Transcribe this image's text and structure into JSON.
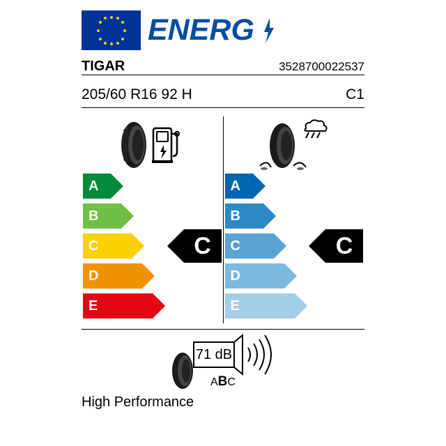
{
  "header": {
    "energy_label": "ENERG"
  },
  "product": {
    "brand": "TIGAR",
    "ean": "3528700022537",
    "size": "205/60 R16 92 H",
    "tyre_class": "C1",
    "description": "High Performance"
  },
  "fuel_efficiency": {
    "type": "rating-scale",
    "letters": [
      "A",
      "B",
      "C",
      "D",
      "E"
    ],
    "colors": [
      "#008a3a",
      "#6fbf44",
      "#fcd100",
      "#f39200",
      "#e30613"
    ],
    "widths": [
      40,
      55,
      70,
      85,
      100
    ],
    "value": "C",
    "value_index": 2
  },
  "wet_grip": {
    "type": "rating-scale",
    "letters": [
      "A",
      "B",
      "C",
      "D",
      "E"
    ],
    "colors": [
      "#0066b3",
      "#2e88c6",
      "#5aa4d4",
      "#7db9de",
      "#a3cee8"
    ],
    "widths": [
      40,
      55,
      70,
      85,
      100
    ],
    "value": "C",
    "value_index": 2
  },
  "noise": {
    "db_value": "71 dB",
    "class_letters": "ABC",
    "selected": "B"
  },
  "style": {
    "eu_flag_bg": "#003399",
    "eu_star_color": "#ffcc00",
    "energy_text_color": "#034ea1",
    "badge_bg": "#000000",
    "badge_text": "#ffffff",
    "arrow_text": "#ffffff",
    "text_color": "#000000",
    "arrow_h": 36,
    "arrow_gap": 7
  }
}
